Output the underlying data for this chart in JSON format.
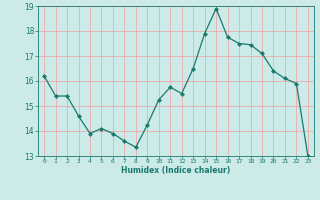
{
  "x": [
    0,
    1,
    2,
    3,
    4,
    5,
    6,
    7,
    8,
    9,
    10,
    11,
    12,
    13,
    14,
    15,
    16,
    17,
    18,
    19,
    20,
    21,
    22,
    23
  ],
  "y": [
    16.2,
    15.4,
    15.4,
    14.6,
    13.9,
    14.1,
    13.9,
    13.6,
    13.35,
    14.25,
    15.25,
    15.75,
    15.5,
    16.5,
    17.9,
    18.9,
    17.75,
    17.5,
    17.45,
    17.1,
    16.4,
    16.1,
    15.9,
    13.0
  ],
  "xlabel": "Humidex (Indice chaleur)",
  "xlim": [
    -0.5,
    23.5
  ],
  "ylim": [
    13,
    19
  ],
  "yticks": [
    13,
    14,
    15,
    16,
    17,
    18,
    19
  ],
  "xticks": [
    0,
    1,
    2,
    3,
    4,
    5,
    6,
    7,
    8,
    9,
    10,
    11,
    12,
    13,
    14,
    15,
    16,
    17,
    18,
    19,
    20,
    21,
    22,
    23
  ],
  "line_color": "#1a7a6e",
  "marker_color": "#1a7a6e",
  "bg_color": "#cceae7",
  "grid_color": "#f0a0a0",
  "label_color": "#1a7a6e",
  "tick_color": "#1a7a6e"
}
